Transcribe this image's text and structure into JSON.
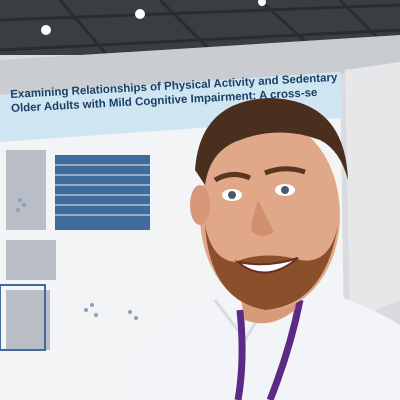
{
  "photo": {
    "subject": "man-selfie",
    "poster": {
      "title_lines": [
        "Examining Relationships of Physical Activity and Sedentary Behaviour wi",
        "Older Adults with Mild Cognitive Impairment: A cross-se"
      ]
    },
    "colors": {
      "ceiling": "#3a3d42",
      "poster_header": "#cfe6f2",
      "poster_body": "#f3f4f6",
      "hair": "#4a2f1f",
      "skin": "#e0a889",
      "beard": "#8a4f2b",
      "shirt": "#f2f4f7",
      "lanyard": "#5b2a86"
    }
  }
}
